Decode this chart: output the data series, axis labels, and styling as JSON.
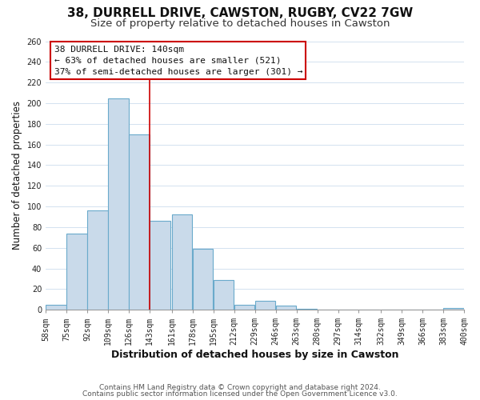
{
  "title": "38, DURRELL DRIVE, CAWSTON, RUGBY, CV22 7GW",
  "subtitle": "Size of property relative to detached houses in Cawston",
  "xlabel": "Distribution of detached houses by size in Cawston",
  "ylabel": "Number of detached properties",
  "bar_left_edges": [
    58,
    75,
    92,
    109,
    126,
    143,
    161,
    178,
    195,
    212,
    229,
    246,
    263,
    280,
    297,
    314,
    332,
    349,
    366,
    383
  ],
  "bar_widths": [
    17,
    17,
    17,
    17,
    17,
    17,
    17,
    17,
    17,
    17,
    17,
    17,
    17,
    17,
    17,
    17,
    17,
    17,
    17,
    17
  ],
  "bar_heights": [
    5,
    74,
    96,
    205,
    170,
    86,
    92,
    59,
    29,
    5,
    9,
    4,
    1,
    0,
    0,
    0,
    0,
    0,
    0,
    2
  ],
  "bar_color": "#c9daea",
  "bar_edge_color": "#6aaacb",
  "bar_linewidth": 0.8,
  "tick_labels": [
    "58sqm",
    "75sqm",
    "92sqm",
    "109sqm",
    "126sqm",
    "143sqm",
    "161sqm",
    "178sqm",
    "195sqm",
    "212sqm",
    "229sqm",
    "246sqm",
    "263sqm",
    "280sqm",
    "297sqm",
    "314sqm",
    "332sqm",
    "349sqm",
    "366sqm",
    "383sqm",
    "400sqm"
  ],
  "vline_x": 143,
  "vline_color": "#cc0000",
  "vline_linewidth": 1.2,
  "ylim": [
    0,
    260
  ],
  "yticks": [
    0,
    20,
    40,
    60,
    80,
    100,
    120,
    140,
    160,
    180,
    200,
    220,
    240,
    260
  ],
  "annotation_line1": "38 DURRELL DRIVE: 140sqm",
  "annotation_line2": "← 63% of detached houses are smaller (521)",
  "annotation_line3": "37% of semi-detached houses are larger (301) →",
  "annotation_fontsize": 8.0,
  "annotation_box_color": "#ffffff",
  "annotation_box_edge": "#cc0000",
  "title_fontsize": 11,
  "subtitle_fontsize": 9.5,
  "xlabel_fontsize": 9,
  "ylabel_fontsize": 8.5,
  "tick_fontsize": 7,
  "footer1": "Contains HM Land Registry data © Crown copyright and database right 2024.",
  "footer2": "Contains public sector information licensed under the Open Government Licence v3.0.",
  "footer_fontsize": 6.5,
  "grid_color": "#ccddee",
  "background_color": "#ffffff"
}
